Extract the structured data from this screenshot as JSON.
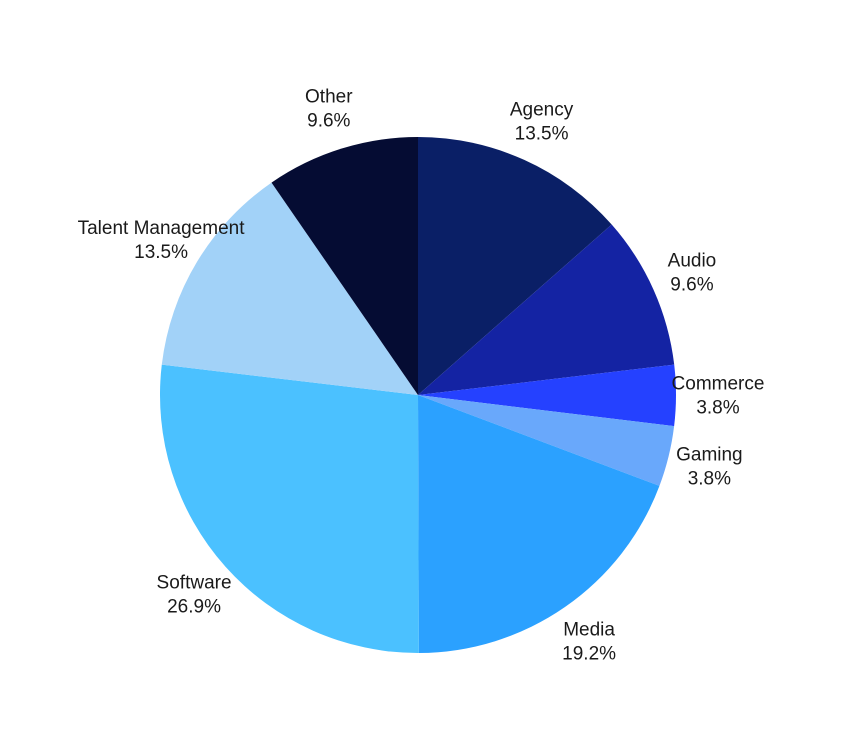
{
  "chart_data": {
    "type": "pie",
    "title": "",
    "slices": [
      {
        "label": "Agency",
        "value": 13.5,
        "display": "13.5%",
        "color": "#0a1f66"
      },
      {
        "label": "Audio",
        "value": 9.6,
        "display": "9.6%",
        "color": "#1423a3"
      },
      {
        "label": "Commerce",
        "value": 3.8,
        "display": "3.8%",
        "color": "#2541ff"
      },
      {
        "label": "Gaming",
        "value": 3.8,
        "display": "3.8%",
        "color": "#69a8fb"
      },
      {
        "label": "Media",
        "value": 19.2,
        "display": "19.2%",
        "color": "#2ba1ff"
      },
      {
        "label": "Software",
        "value": 26.9,
        "display": "26.9%",
        "color": "#4bc1ff"
      },
      {
        "label": "Talent Management",
        "value": 13.5,
        "display": "13.5%",
        "color": "#a2d2f8"
      },
      {
        "label": "Other",
        "value": 9.6,
        "display": "9.6%",
        "color": "#050c33"
      }
    ],
    "start_angle": "12 o'clock",
    "direction": "clockwise",
    "legend": "none",
    "labels": "outside"
  }
}
